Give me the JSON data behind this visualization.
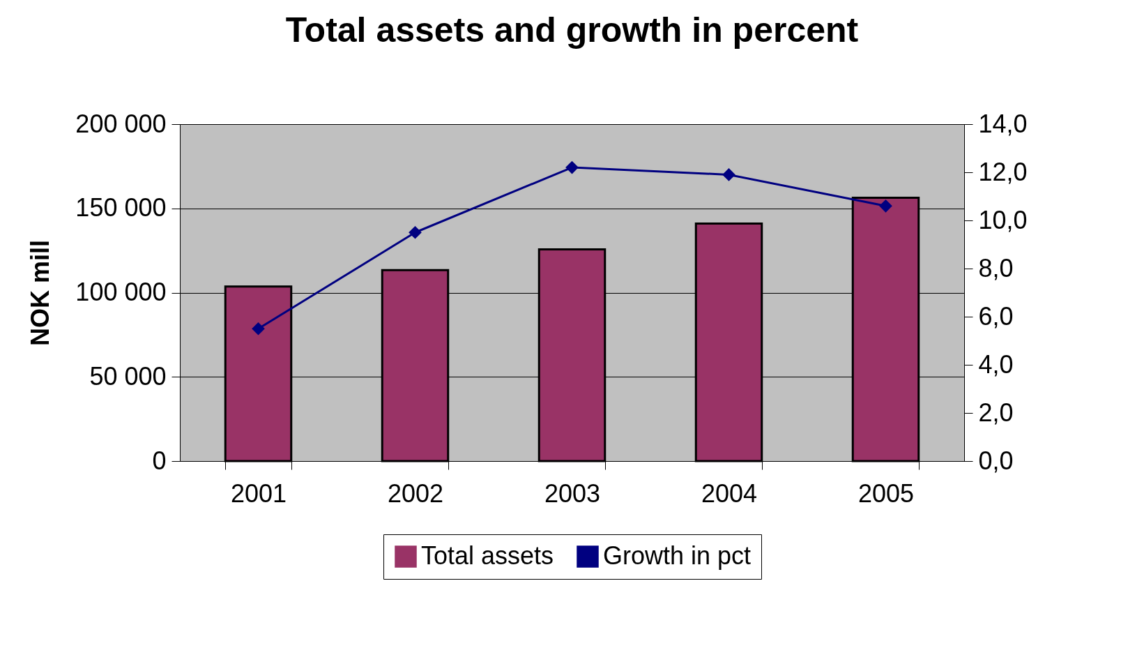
{
  "chart_data": {
    "type": "bar",
    "title": "Total assets and growth in percent",
    "ylabel": "NOK mill",
    "categories": [
      "2001",
      "2002",
      "2003",
      "2004",
      "2005"
    ],
    "series": [
      {
        "name": "Total assets",
        "color": "#993366",
        "values": [
          103600,
          113400,
          125700,
          141000,
          156300
        ]
      },
      {
        "name": "Growth in pct",
        "type": "line",
        "axis": "y2",
        "color": "#000080",
        "values": [
          5.5,
          9.5,
          12.2,
          11.9,
          10.6
        ]
      }
    ],
    "ylim": [
      0,
      200000
    ],
    "yticks": [
      {
        "value": 0,
        "label": "0"
      },
      {
        "value": 50000,
        "label": "50 000"
      },
      {
        "value": 100000,
        "label": "100 000"
      },
      {
        "value": 150000,
        "label": "150 000"
      },
      {
        "value": 200000,
        "label": "200 000"
      }
    ],
    "y2lim": [
      0,
      14
    ],
    "y2ticks": [
      {
        "value": 0,
        "label": "0,0"
      },
      {
        "value": 2,
        "label": "2,0"
      },
      {
        "value": 4,
        "label": "4,0"
      },
      {
        "value": 6,
        "label": "6,0"
      },
      {
        "value": 8,
        "label": "8,0"
      },
      {
        "value": 10,
        "label": "10,0"
      },
      {
        "value": 12,
        "label": "12,0"
      },
      {
        "value": 14,
        "label": "14,0"
      }
    ],
    "grid": "y",
    "legend": "bottom",
    "marker": "diamond",
    "line_style": "solid"
  }
}
